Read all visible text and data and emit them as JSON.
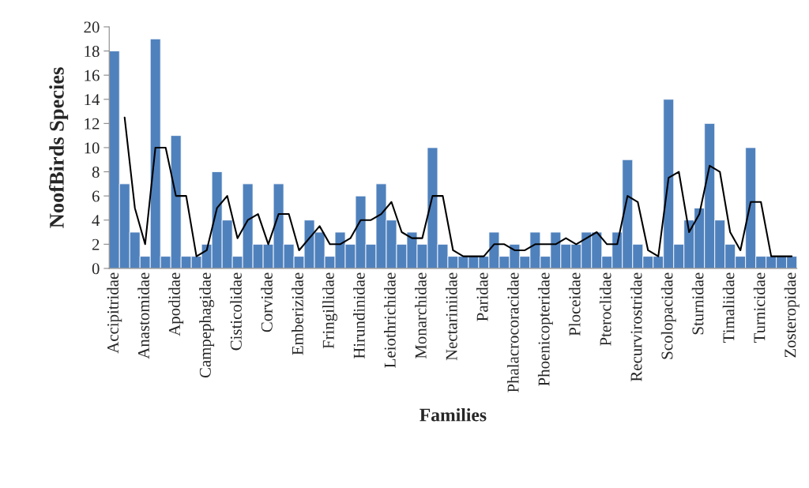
{
  "chart_data": {
    "type": "bar",
    "xlabel": "Families",
    "ylabel": "NoofBirds Species",
    "categories": [
      "Accipitridae",
      null,
      null,
      "Anastomidae",
      null,
      null,
      "Apodidae",
      null,
      null,
      "Campephagidae",
      null,
      null,
      "Cisticolidae",
      null,
      null,
      "Corvidae",
      null,
      null,
      "Emberizidae",
      null,
      null,
      "Fringillidae",
      null,
      null,
      "Hirundinidae",
      null,
      null,
      "Leiothrichidae",
      null,
      null,
      "Monarchidae",
      null,
      null,
      "Nectariniidae",
      null,
      null,
      "Paridae",
      null,
      null,
      "Phalacrocoracidae",
      null,
      null,
      "Phoenicopteridae",
      null,
      null,
      "Ploceidae",
      null,
      null,
      "Pteroclidae",
      null,
      null,
      "Recurvirostridae",
      null,
      null,
      "Scolopacidae",
      null,
      null,
      "Sturnidae",
      null,
      null,
      "Timaliidae",
      null,
      null,
      "Turnicidae",
      null,
      null,
      "Zosteropidae"
    ],
    "series": [
      {
        "color": "#4f81bd",
        "values": [
          18,
          7,
          3,
          1,
          19,
          1,
          11,
          1,
          1,
          2,
          8,
          4,
          1,
          7,
          2,
          2,
          7,
          2,
          1,
          4,
          3,
          1,
          3,
          2,
          6,
          2,
          7,
          4,
          2,
          3,
          2,
          10,
          2,
          1,
          1,
          1,
          1,
          3,
          1,
          2,
          1,
          3,
          1,
          3,
          2,
          2,
          3,
          3,
          1,
          3,
          9,
          2,
          1,
          1,
          14,
          2,
          4,
          5,
          12,
          4,
          2,
          1,
          10,
          1,
          1,
          1,
          1
        ]
      },
      {
        "type": "line",
        "color": "#000000",
        "values": [
          null,
          12.5,
          5,
          2,
          10,
          10,
          6,
          6,
          1,
          1.5,
          5,
          6,
          2.5,
          4,
          4.5,
          2,
          4.5,
          4.5,
          1.5,
          2.5,
          3.5,
          2,
          2,
          2.5,
          4,
          4,
          4.5,
          5.5,
          3,
          2.5,
          2.5,
          6,
          6,
          1.5,
          1,
          1,
          1,
          2,
          2,
          1.5,
          1.5,
          2,
          2,
          2,
          2.5,
          2,
          2.5,
          3,
          2,
          2,
          6,
          5.5,
          1.5,
          1,
          7.5,
          8,
          3,
          4.5,
          8.5,
          8,
          3,
          1.5,
          5.5,
          5.5,
          1,
          1,
          1
        ]
      }
    ],
    "ylim": [
      0,
      20
    ],
    "yticks": [
      0,
      2,
      4,
      6,
      8,
      10,
      12,
      14,
      16,
      18,
      20
    ],
    "grid": false,
    "legend": false
  }
}
